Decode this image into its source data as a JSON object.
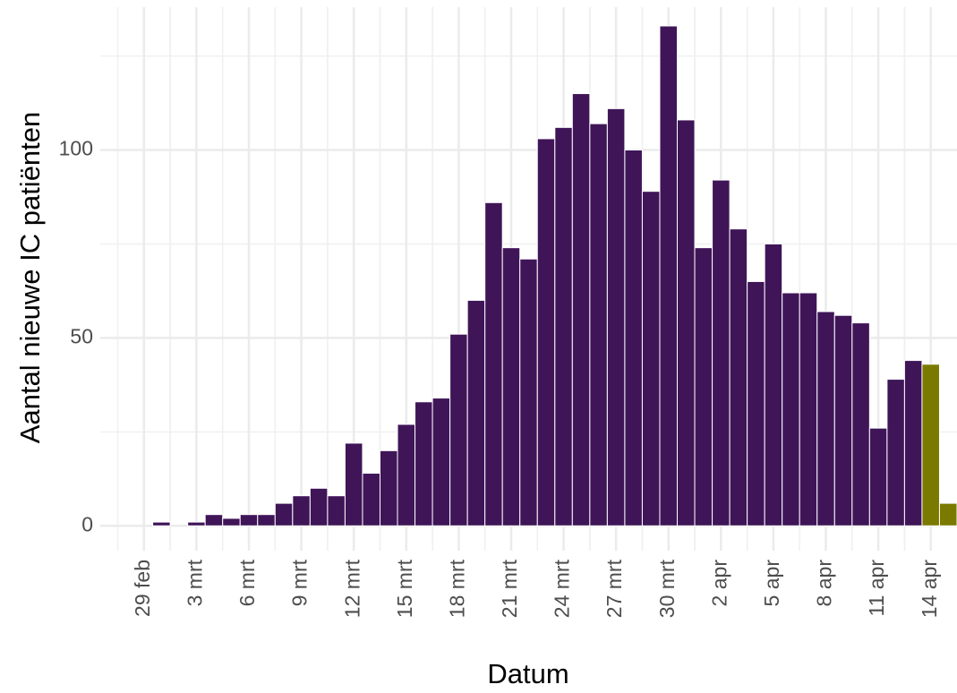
{
  "chart_data": {
    "type": "bar",
    "x_label": "Datum",
    "y_label": "Aantal nieuwe IC patiënten",
    "categories": [
      null,
      null,
      "29 feb",
      null,
      null,
      "3 mrt",
      null,
      null,
      "6 mrt",
      null,
      null,
      "9 mrt",
      null,
      null,
      "12 mrt",
      null,
      null,
      "15 mrt",
      null,
      null,
      "18 mrt",
      null,
      null,
      "21 mrt",
      null,
      null,
      "24 mrt",
      null,
      null,
      "27 mrt",
      null,
      null,
      "30 mrt",
      null,
      null,
      "2 apr",
      null,
      null,
      "5 apr",
      null,
      null,
      "8 apr",
      null,
      null,
      "11 apr",
      null,
      null,
      "14 apr",
      null
    ],
    "values": [
      0,
      0,
      0,
      1,
      0,
      1,
      3,
      2,
      3,
      3,
      6,
      8,
      10,
      8,
      22,
      14,
      20,
      27,
      33,
      34,
      51,
      60,
      86,
      74,
      71,
      103,
      106,
      115,
      107,
      111,
      100,
      89,
      133,
      108,
      74,
      92,
      79,
      65,
      75,
      62,
      62,
      57,
      56,
      54,
      26,
      39,
      44,
      43,
      6
    ],
    "colors": [
      "#3f1558",
      "#3f1558",
      "#3f1558",
      "#3f1558",
      "#3f1558",
      "#3f1558",
      "#3f1558",
      "#3f1558",
      "#3f1558",
      "#3f1558",
      "#3f1558",
      "#3f1558",
      "#3f1558",
      "#3f1558",
      "#3f1558",
      "#3f1558",
      "#3f1558",
      "#3f1558",
      "#3f1558",
      "#3f1558",
      "#3f1558",
      "#3f1558",
      "#3f1558",
      "#3f1558",
      "#3f1558",
      "#3f1558",
      "#3f1558",
      "#3f1558",
      "#3f1558",
      "#3f1558",
      "#3f1558",
      "#3f1558",
      "#3f1558",
      "#3f1558",
      "#3f1558",
      "#3f1558",
      "#3f1558",
      "#3f1558",
      "#3f1558",
      "#3f1558",
      "#3f1558",
      "#3f1558",
      "#3f1558",
      "#3f1558",
      "#3f1558",
      "#3f1558",
      "#3f1558",
      "#7a7a00",
      "#7a7a00"
    ],
    "ylim": [
      -6.6,
      138
    ],
    "yticks": [
      0,
      50,
      100
    ],
    "minor_yticks": [
      25,
      75,
      125
    ],
    "grid": true
  }
}
